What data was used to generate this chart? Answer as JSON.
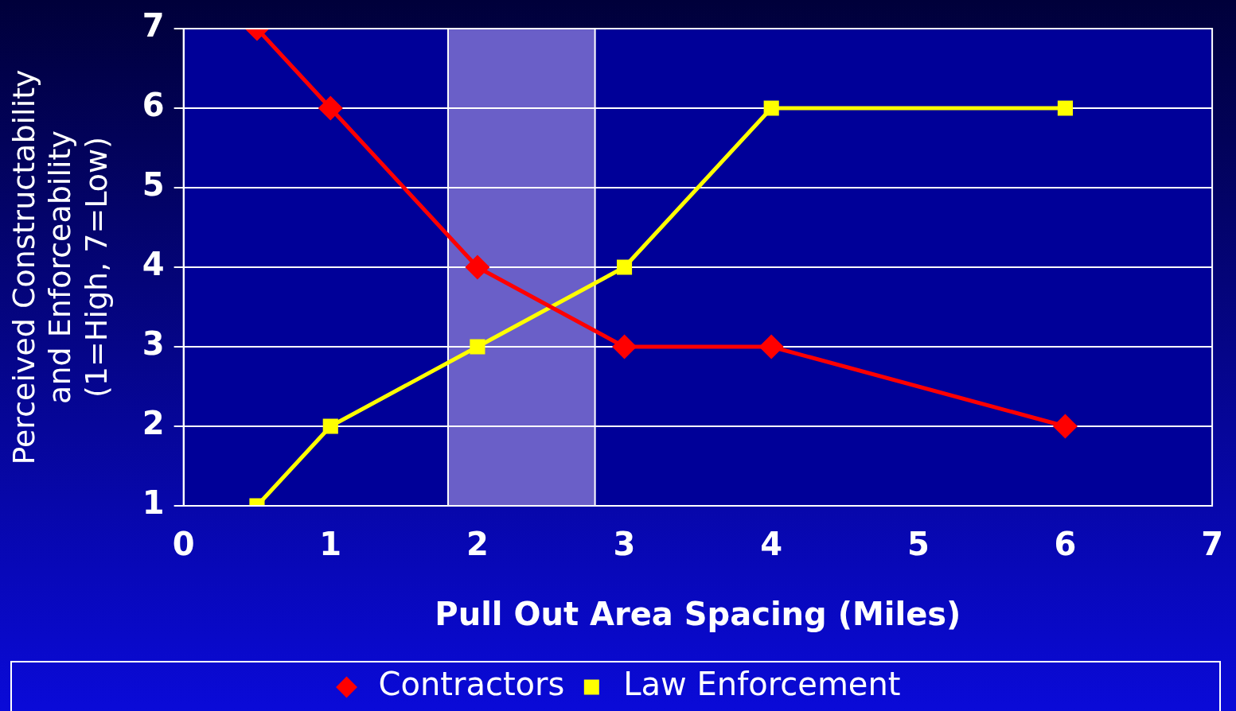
{
  "chart_data": {
    "type": "line",
    "xlabel": "Pull Out Area Spacing (Miles)",
    "ylabel": "Perceived Constructability\nand Enforceability\n(1=High, 7=Low)",
    "xlim": [
      0,
      7
    ],
    "xticks": [
      0,
      1,
      2,
      3,
      4,
      5,
      6,
      7
    ],
    "ylim": [
      1,
      7
    ],
    "yticks": [
      1,
      2,
      3,
      4,
      5,
      6,
      7
    ],
    "grid": "y",
    "legend": "bottom",
    "bands": [
      {
        "axis": "x",
        "from": 1.8,
        "to": 2.8,
        "color": "#6a5fc8"
      }
    ],
    "series": [
      {
        "name": "Contractors",
        "color": "#ff0000",
        "marker": "diamond",
        "x": [
          0.5,
          1,
          2,
          3,
          4,
          6
        ],
        "values": [
          7,
          6,
          4,
          3,
          3,
          2
        ]
      },
      {
        "name": "Law Enforcement",
        "color": "#ffff00",
        "marker": "square",
        "x": [
          0.5,
          1,
          2,
          3,
          4,
          6
        ],
        "values": [
          1,
          2,
          3,
          4,
          6,
          6
        ]
      }
    ]
  }
}
